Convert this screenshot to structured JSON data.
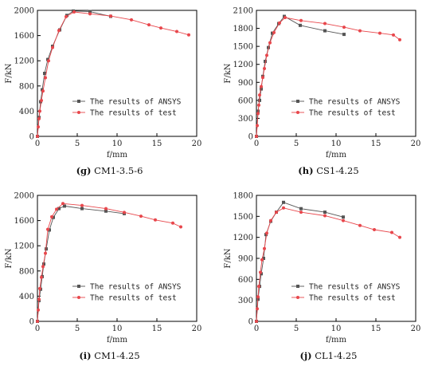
{
  "chart_data": [
    {
      "type": "line",
      "caption_letter": "(g)",
      "caption_name": "CM1-3.5-6",
      "xlabel": "f/mm",
      "ylabel": "F/kN",
      "xlim": [
        0,
        20
      ],
      "ylim": [
        0,
        2000
      ],
      "xticks": [
        "0",
        "5",
        "10",
        "15",
        "20"
      ],
      "yticks": [
        "0",
        "400",
        "800",
        "1200",
        "1600",
        "2000"
      ],
      "legend_position": "bottom-right",
      "series": [
        {
          "name": "The results of ANSYS",
          "color": "#555555",
          "marker": "square",
          "x": [
            0,
            0.2,
            0.4,
            0.6,
            0.9,
            1.3,
            1.9,
            2.8,
            3.7,
            4.5,
            6.6,
            9.2
          ],
          "y": [
            0,
            300,
            550,
            740,
            1000,
            1220,
            1430,
            1690,
            1920,
            1990,
            1980,
            1905
          ]
        },
        {
          "name": "The results of test",
          "color": "#e8474c",
          "marker": "circle",
          "x": [
            0,
            0.1,
            0.2,
            0.3,
            0.5,
            0.7,
            1.0,
            1.4,
            1.9,
            2.7,
            3.6,
            4.6,
            6.6,
            9.2,
            11.8,
            14.0,
            15.5,
            17.5,
            19.0
          ],
          "y": [
            0,
            150,
            280,
            400,
            570,
            720,
            930,
            1200,
            1410,
            1680,
            1900,
            1975,
            1945,
            1910,
            1850,
            1770,
            1720,
            1665,
            1610
          ]
        }
      ]
    },
    {
      "type": "line",
      "caption_letter": "(h)",
      "caption_name": "CS1-4.25",
      "xlabel": "f/mm",
      "ylabel": "F/kN",
      "xlim": [
        0,
        20
      ],
      "ylim": [
        0,
        2100
      ],
      "xticks": [
        "0",
        "5",
        "10",
        "15",
        "20"
      ],
      "yticks": [
        "0",
        "300",
        "600",
        "900",
        "1200",
        "1500",
        "1800",
        "2100"
      ],
      "legend_position": "bottom-right",
      "series": [
        {
          "name": "The results of ANSYS",
          "color": "#555555",
          "marker": "square",
          "x": [
            0,
            0.2,
            0.4,
            0.6,
            0.8,
            1.1,
            1.5,
            2.0,
            2.8,
            3.5,
            5.5,
            8.6,
            11.0
          ],
          "y": [
            0,
            420,
            600,
            790,
            1000,
            1250,
            1480,
            1720,
            1880,
            2000,
            1850,
            1760,
            1700
          ]
        },
        {
          "name": "The results of test",
          "color": "#e8474c",
          "marker": "circle",
          "x": [
            0,
            0.1,
            0.2,
            0.3,
            0.4,
            0.6,
            0.8,
            1.0,
            1.3,
            1.7,
            2.2,
            2.9,
            3.6,
            5.6,
            8.6,
            11.0,
            13.0,
            15.5,
            17.2,
            18.0
          ],
          "y": [
            0,
            180,
            380,
            520,
            690,
            830,
            980,
            1130,
            1350,
            1560,
            1730,
            1890,
            1980,
            1930,
            1880,
            1820,
            1760,
            1720,
            1690,
            1610
          ]
        }
      ]
    },
    {
      "type": "line",
      "caption_letter": "(i)",
      "caption_name": "CM1-4.25",
      "xlabel": "f/mm",
      "ylabel": "F/kN",
      "xlim": [
        0,
        20
      ],
      "ylim": [
        0,
        2000
      ],
      "xticks": [
        "0",
        "5",
        "10",
        "15",
        "20"
      ],
      "yticks": [
        "0",
        "400",
        "800",
        "1200",
        "1600",
        "2000"
      ],
      "legend_position": "bottom-right",
      "series": [
        {
          "name": "The results of ANSYS",
          "color": "#555555",
          "marker": "square",
          "x": [
            0,
            0.2,
            0.4,
            0.6,
            0.8,
            1.1,
            1.5,
            2.0,
            2.7,
            3.4,
            5.6,
            8.6,
            10.9
          ],
          "y": [
            0,
            330,
            510,
            710,
            910,
            1150,
            1450,
            1650,
            1790,
            1830,
            1790,
            1750,
            1710
          ]
        },
        {
          "name": "The results of test",
          "color": "#e8474c",
          "marker": "circle",
          "x": [
            0,
            0.1,
            0.2,
            0.3,
            0.5,
            0.7,
            1.0,
            1.3,
            1.8,
            2.4,
            3.2,
            5.6,
            8.6,
            10.9,
            13.0,
            14.8,
            17.0,
            18.0
          ],
          "y": [
            0,
            180,
            350,
            520,
            700,
            870,
            1080,
            1460,
            1660,
            1780,
            1870,
            1840,
            1790,
            1730,
            1670,
            1610,
            1560,
            1500
          ]
        }
      ]
    },
    {
      "type": "line",
      "caption_letter": "(j)",
      "caption_name": "CL1-4.25",
      "xlabel": "f/mm",
      "ylabel": "F/kN",
      "xlim": [
        0,
        20
      ],
      "ylim": [
        0,
        1800
      ],
      "xticks": [
        "0",
        "5",
        "10",
        "15",
        "20"
      ],
      "yticks": [
        "0",
        "300",
        "600",
        "900",
        "1200",
        "1500",
        "1800"
      ],
      "legend_position": "bottom-right",
      "series": [
        {
          "name": "The results of ANSYS",
          "color": "#555555",
          "marker": "square",
          "x": [
            0,
            0.2,
            0.4,
            0.6,
            0.9,
            1.2,
            1.8,
            2.5,
            3.4,
            5.6,
            8.6,
            10.9
          ],
          "y": [
            0,
            320,
            500,
            680,
            900,
            1240,
            1430,
            1560,
            1700,
            1610,
            1560,
            1490
          ]
        },
        {
          "name": "The results of test",
          "color": "#e8474c",
          "marker": "circle",
          "x": [
            0,
            0.1,
            0.2,
            0.3,
            0.5,
            0.7,
            1.0,
            1.3,
            1.8,
            2.5,
            3.4,
            5.6,
            8.6,
            10.9,
            13.0,
            14.8,
            17.0,
            18.0
          ],
          "y": [
            0,
            180,
            350,
            500,
            700,
            880,
            1040,
            1260,
            1440,
            1560,
            1620,
            1560,
            1510,
            1440,
            1370,
            1310,
            1270,
            1200
          ]
        }
      ]
    }
  ]
}
